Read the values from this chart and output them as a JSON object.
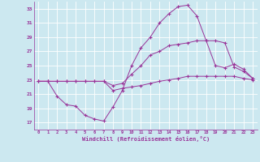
{
  "xlabel": "Windchill (Refroidissement éolien,°C)",
  "bg_color": "#cce8f0",
  "grid_color": "#ffffff",
  "line_color": "#993399",
  "xlim": [
    -0.5,
    23.5
  ],
  "ylim": [
    16,
    34
  ],
  "yticks": [
    17,
    19,
    21,
    23,
    25,
    27,
    29,
    31,
    33
  ],
  "xticks": [
    0,
    1,
    2,
    3,
    4,
    5,
    6,
    7,
    8,
    9,
    10,
    11,
    12,
    13,
    14,
    15,
    16,
    17,
    18,
    19,
    20,
    21,
    22,
    23
  ],
  "line1_x": [
    0,
    1,
    2,
    3,
    4,
    5,
    6,
    7,
    8,
    9,
    10,
    11,
    12,
    13,
    14,
    15,
    16,
    17,
    18,
    19,
    20,
    21,
    22,
    23
  ],
  "line1_y": [
    22.8,
    22.8,
    22.8,
    22.8,
    22.8,
    22.8,
    22.8,
    22.8,
    21.5,
    21.8,
    22.0,
    22.2,
    22.5,
    22.8,
    23.0,
    23.2,
    23.5,
    23.5,
    23.5,
    23.5,
    23.5,
    23.5,
    23.2,
    23.0
  ],
  "line2_x": [
    0,
    1,
    2,
    3,
    4,
    5,
    6,
    7,
    8,
    9,
    10,
    11,
    12,
    13,
    14,
    15,
    16,
    17,
    18,
    19,
    20,
    21,
    22,
    23
  ],
  "line2_y": [
    22.8,
    22.8,
    20.7,
    19.5,
    19.3,
    18.0,
    17.5,
    17.2,
    19.2,
    21.5,
    25.0,
    27.5,
    29.0,
    31.0,
    32.3,
    33.3,
    33.5,
    32.0,
    28.5,
    25.0,
    24.7,
    25.2,
    24.5,
    23.2
  ],
  "line3_x": [
    0,
    1,
    2,
    3,
    4,
    5,
    6,
    7,
    8,
    9,
    10,
    11,
    12,
    13,
    14,
    15,
    16,
    17,
    18,
    19,
    20,
    21,
    22,
    23
  ],
  "line3_y": [
    22.8,
    22.8,
    22.8,
    22.8,
    22.8,
    22.8,
    22.8,
    22.8,
    22.2,
    22.5,
    23.8,
    25.0,
    26.5,
    27.0,
    27.8,
    28.0,
    28.2,
    28.5,
    28.5,
    28.5,
    28.2,
    24.8,
    24.2,
    23.2
  ]
}
